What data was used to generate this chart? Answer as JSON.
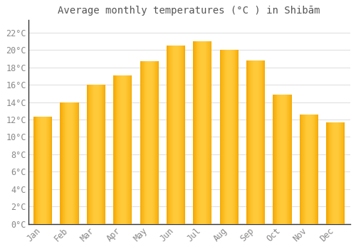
{
  "title": "Average monthly temperatures (°C ) in Shibām",
  "months": [
    "Jan",
    "Feb",
    "Mar",
    "Apr",
    "May",
    "Jun",
    "Jul",
    "Aug",
    "Sep",
    "Oct",
    "Nov",
    "Dec"
  ],
  "values": [
    12.3,
    14.0,
    16.0,
    17.1,
    18.7,
    20.5,
    21.0,
    20.0,
    18.8,
    14.9,
    12.6,
    11.7
  ],
  "bar_color_center": "#FFCA3A",
  "bar_color_edge": "#F5A800",
  "background_color": "#FFFFFF",
  "plot_bg_color": "#FFFFFF",
  "grid_color": "#E0E0E0",
  "yticks": [
    0,
    2,
    4,
    6,
    8,
    10,
    12,
    14,
    16,
    18,
    20,
    22
  ],
  "ylim": [
    0,
    23.5
  ],
  "title_fontsize": 10,
  "tick_fontsize": 8.5,
  "tick_label_color": "#888888",
  "spine_color": "#333333",
  "bar_width": 0.7
}
